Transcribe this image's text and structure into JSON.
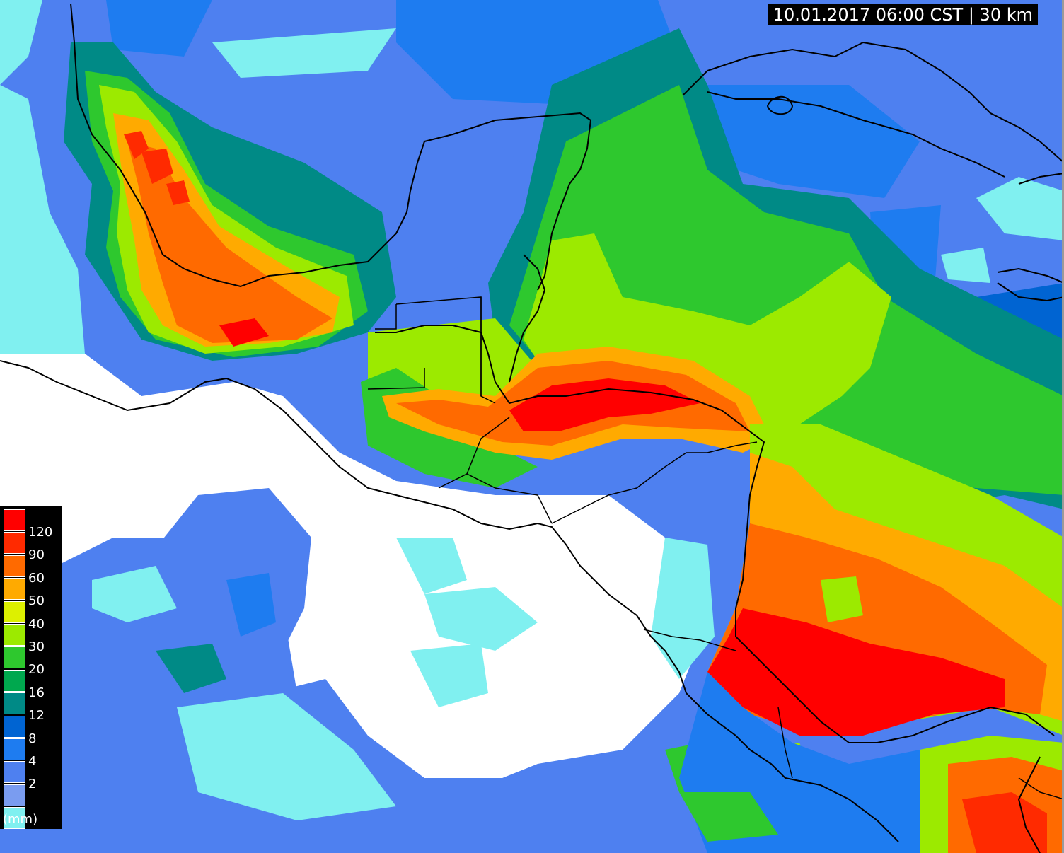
{
  "timestamp": "10.01.2017 06:00 CST | 30 km",
  "legend": {
    "unit": "(mm)",
    "levels": [
      {
        "label": "120",
        "color": "#ff0000"
      },
      {
        "label": "90",
        "color": "#ff2a00"
      },
      {
        "label": "60",
        "color": "#ff6a00"
      },
      {
        "label": "50",
        "color": "#ffaa00"
      },
      {
        "label": "40",
        "color": "#ddf000"
      },
      {
        "label": "30",
        "color": "#9cea00"
      },
      {
        "label": "20",
        "color": "#2ec82e"
      },
      {
        "label": "16",
        "color": "#00a84e"
      },
      {
        "label": "12",
        "color": "#008a86"
      },
      {
        "label": "8",
        "color": "#0064d2"
      },
      {
        "label": "4",
        "color": "#1e7cf0"
      },
      {
        "label": "2",
        "color": "#4e80f0"
      },
      {
        "label": "",
        "color": "#7a9cf0"
      },
      {
        "label": "",
        "color": "#80f0f0"
      }
    ]
  }
}
